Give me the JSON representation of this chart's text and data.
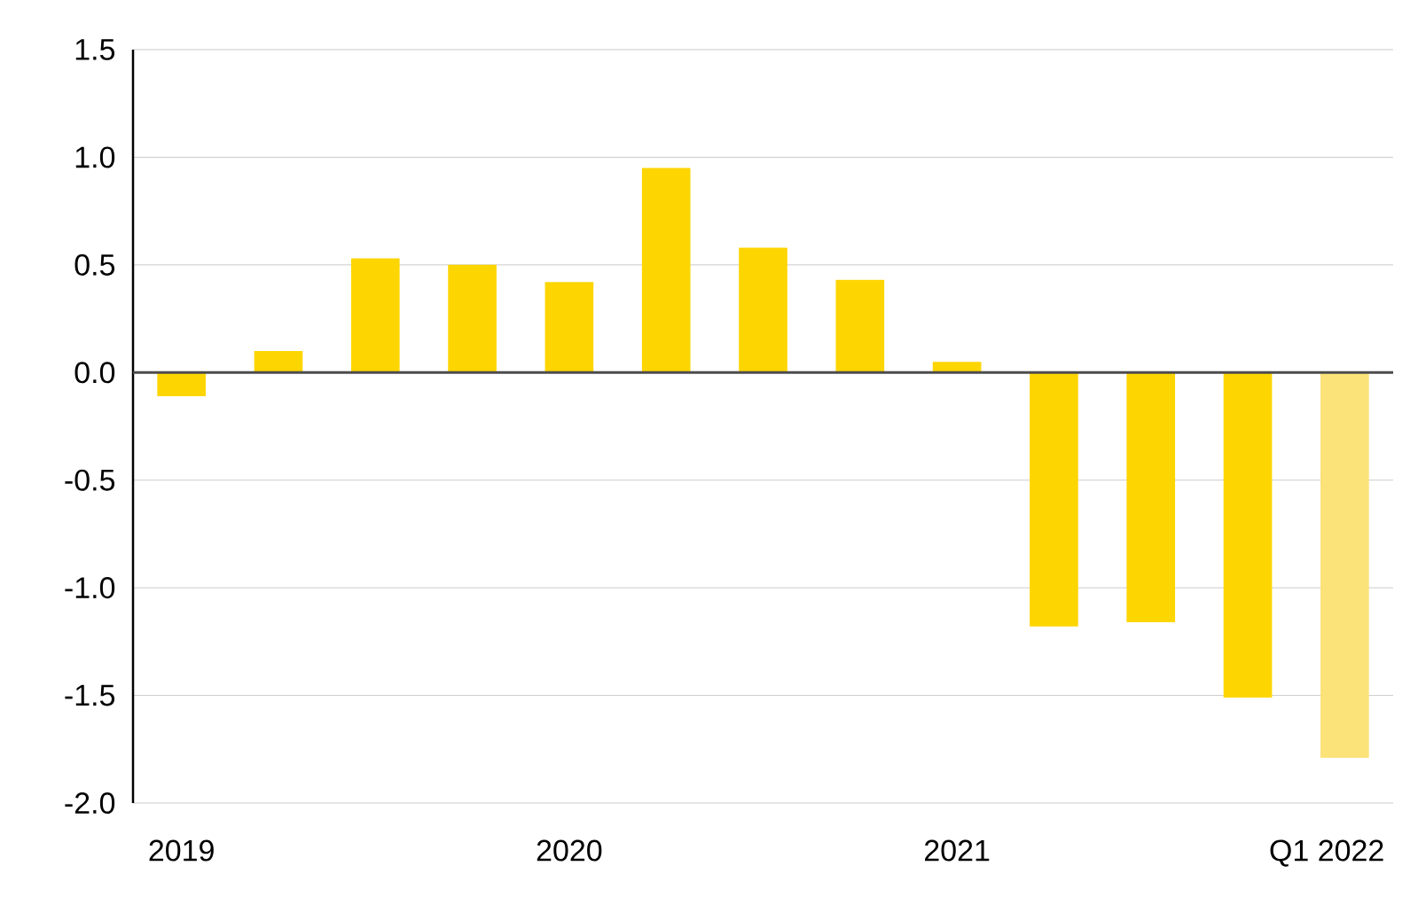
{
  "chart_data": {
    "type": "bar",
    "categories": [
      "2019",
      null,
      null,
      null,
      "2020",
      null,
      null,
      null,
      "2021",
      null,
      null,
      null,
      "Q1 2022"
    ],
    "values": [
      -0.11,
      0.1,
      0.53,
      0.5,
      0.42,
      0.95,
      0.58,
      0.43,
      0.05,
      -1.18,
      -1.16,
      -1.51,
      -1.79
    ],
    "colors": [
      "#fdd500",
      "#fdd500",
      "#fdd500",
      "#fdd500",
      "#fdd500",
      "#fdd500",
      "#fdd500",
      "#fdd500",
      "#fdd500",
      "#fdd500",
      "#fdd500",
      "#fdd500",
      "#fbe37a"
    ],
    "ylim": [
      -2.0,
      1.5
    ],
    "yticks": [
      {
        "value": -2.0,
        "label": "-2.0"
      },
      {
        "value": -1.5,
        "label": "-1.5"
      },
      {
        "value": -1.0,
        "label": "-1.0"
      },
      {
        "value": -0.5,
        "label": "-0.5"
      },
      {
        "value": 0,
        "label": "0.0"
      },
      {
        "value": 0.5,
        "label": "0.5"
      },
      {
        "value": 1.0,
        "label": "1.0"
      },
      {
        "value": 1.5,
        "label": "1.5"
      }
    ],
    "grid": "y"
  }
}
